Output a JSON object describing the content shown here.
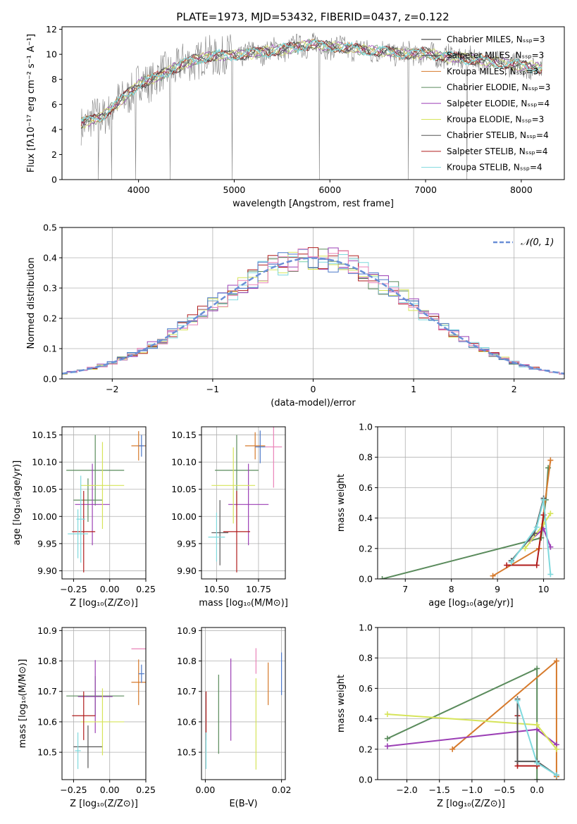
{
  "chart_data": [
    {
      "type": "line",
      "title": "PLATE=1973, MJD=53432, FIBERID=0437, z=0.122",
      "xlabel": "wavelength [Angstrom, rest frame]",
      "ylabel": "Flux [fλ10⁻¹⁷ erg cm⁻² s⁻¹ A⁻¹]",
      "xlim": [
        3200,
        8450
      ],
      "ylim": [
        0,
        12.2
      ],
      "xticks": [
        4000,
        5000,
        6000,
        7000,
        8000
      ],
      "yticks": [
        0,
        2,
        4,
        6,
        8,
        10,
        12
      ],
      "grid": false,
      "legend_position": "upper-right",
      "series": [
        {
          "name": "Chabrier MILES, Nₛₛₚ=3",
          "color": "#1f1f1f"
        },
        {
          "name": "Salpeter MILES, Nₛₛₚ=3",
          "color": "#444444"
        },
        {
          "name": "Kroupa MILES, Nₛₛₚ=3",
          "color": "#d67a2c"
        },
        {
          "name": "Chabrier ELODIE, Nₛₛₚ=3",
          "color": "#5a8b5c"
        },
        {
          "name": "Salpeter ELODIE, Nₛₛₚ=4",
          "color": "#9b3fb5"
        },
        {
          "name": "Kroupa ELODIE, Nₛₛₚ=3",
          "color": "#d6e45a"
        },
        {
          "name": "Chabrier STELIB, Nₛₛₚ=4",
          "color": "#555555"
        },
        {
          "name": "Salpeter STELIB, Nₛₛₚ=4",
          "color": "#b01c1c"
        },
        {
          "name": "Kroupa STELIB, Nₛₛₚ=4",
          "color": "#7fd9dd"
        }
      ],
      "data_color": "#808080",
      "continuum": {
        "x": [
          3400,
          3600,
          3800,
          4000,
          4200,
          4400,
          4600,
          4800,
          5000,
          5200,
          5400,
          5600,
          5800,
          6000,
          6200,
          6400,
          6600,
          6800,
          7000,
          7200,
          7400,
          7600,
          7800,
          8000,
          8200
        ],
        "y": [
          4.5,
          5.0,
          6.2,
          7.6,
          8.2,
          9.0,
          9.6,
          9.9,
          9.9,
          10.1,
          10.3,
          10.5,
          10.8,
          10.6,
          10.5,
          10.3,
          10.2,
          10.0,
          10.1,
          9.8,
          9.7,
          9.5,
          9.3,
          9.1,
          8.9
        ]
      },
      "dips": [
        3580,
        3720,
        3970,
        4330,
        4980,
        5890,
        6820,
        7430
      ]
    },
    {
      "type": "line",
      "xlabel": "(data-model)/error",
      "ylabel": "Normed distribution",
      "xlim": [
        -2.5,
        2.5
      ],
      "ylim": [
        0,
        0.5
      ],
      "xticks": [
        -2,
        -1,
        0,
        1,
        2
      ],
      "yticks": [
        0.0,
        0.1,
        0.2,
        0.3,
        0.4,
        0.5
      ],
      "grid": true,
      "legend_position": "upper-right",
      "legend": [
        "𝒩(0, 1)"
      ],
      "bin_width": 0.1,
      "step_colors": [
        "#5a8b5c",
        "#9b3fb5",
        "#d6e45a",
        "#b01c1c",
        "#7fd9dd",
        "#4c78c9",
        "#e983b8"
      ],
      "reference_curve": {
        "type": "normal",
        "mean": 0,
        "sigma": 1,
        "color": "#6a8fd6"
      }
    },
    {
      "type": "scatter",
      "xlabel": "Z [log₁₀(Z/Z⊙)]",
      "ylabel": "age  [log₁₀(age/yr)]",
      "xlim": [
        -0.33,
        0.25
      ],
      "ylim": [
        9.885,
        10.165
      ],
      "xticks": [
        -0.25,
        0.0,
        0.25
      ],
      "xtick_labels": [
        "−0.25",
        "0.00",
        "0.25"
      ],
      "yticks": [
        9.9,
        9.95,
        10.0,
        10.05,
        10.1,
        10.15
      ],
      "grid": true,
      "points": [
        {
          "x": -0.1,
          "y": 10.085,
          "xerr": 0.2,
          "yerr": 0.065,
          "color": "#5a8b5c"
        },
        {
          "x": -0.15,
          "y": 10.03,
          "xerr": 0.1,
          "yerr": 0.04,
          "color": "#5a8b5c"
        },
        {
          "x": -0.12,
          "y": 10.022,
          "xerr": 0.12,
          "yerr": 0.075,
          "color": "#9b3fb5"
        },
        {
          "x": -0.05,
          "y": 10.057,
          "xerr": 0.15,
          "yerr": 0.08,
          "color": "#d6e45a"
        },
        {
          "x": -0.18,
          "y": 9.972,
          "xerr": 0.08,
          "yerr": 0.075,
          "color": "#b01c1c"
        },
        {
          "x": -0.22,
          "y": 9.968,
          "xerr": 0.07,
          "yerr": 0.045,
          "color": "#7fd9dd"
        },
        {
          "x": -0.2,
          "y": 9.995,
          "xerr": 0.03,
          "yerr": 0.08,
          "color": "#7fd9dd"
        },
        {
          "x": 0.2,
          "y": 10.13,
          "xerr": 0.05,
          "yerr": 0.027,
          "color": "#d67a2c"
        },
        {
          "x": 0.22,
          "y": 10.13,
          "xerr": 0.02,
          "yerr": 0.02,
          "color": "#4c78c9"
        }
      ]
    },
    {
      "type": "scatter",
      "xlabel": "mass [log₁₀(M/M⊙)]",
      "ylabel": "",
      "xlim": [
        10.41,
        10.91
      ],
      "ylim": [
        9.885,
        10.165
      ],
      "xticks": [
        10.5,
        10.75
      ],
      "xtick_labels": [
        "10.50",
        "10.75"
      ],
      "yticks": [
        9.9,
        9.95,
        10.0,
        10.05,
        10.1,
        10.15
      ],
      "grid": true,
      "points": [
        {
          "x": 10.62,
          "y": 10.085,
          "xerr": 0.13,
          "yerr": 0.065,
          "color": "#5a8b5c"
        },
        {
          "x": 10.69,
          "y": 10.022,
          "xerr": 0.12,
          "yerr": 0.075,
          "color": "#9b3fb5"
        },
        {
          "x": 10.6,
          "y": 10.057,
          "xerr": 0.13,
          "yerr": 0.07,
          "color": "#d6e45a"
        },
        {
          "x": 10.62,
          "y": 9.972,
          "xerr": 0.08,
          "yerr": 0.075,
          "color": "#b01c1c"
        },
        {
          "x": 10.52,
          "y": 9.97,
          "xerr": 0.05,
          "yerr": 0.06,
          "color": "#555555"
        },
        {
          "x": 10.5,
          "y": 9.962,
          "xerr": 0.05,
          "yerr": 0.045,
          "color": "#7fd9dd"
        },
        {
          "x": 10.73,
          "y": 10.13,
          "xerr": 0.06,
          "yerr": 0.025,
          "color": "#d67a2c"
        },
        {
          "x": 10.76,
          "y": 10.128,
          "xerr": 0.03,
          "yerr": 0.03,
          "color": "#4c78c9"
        },
        {
          "x": 10.84,
          "y": 10.128,
          "xerr": 0.05,
          "yerr": 0.075,
          "color": "#e983b8"
        }
      ]
    },
    {
      "type": "line",
      "xlabel": "age  [log₁₀(age/yr)]",
      "ylabel": "mass weight",
      "xlim": [
        6.4,
        10.45
      ],
      "ylim": [
        0,
        1.0
      ],
      "xticks": [
        7,
        8,
        9,
        10
      ],
      "yticks": [
        0.0,
        0.2,
        0.4,
        0.6,
        0.8,
        1.0
      ],
      "grid": true,
      "series": [
        {
          "color": "#5a8b5c",
          "x": [
            6.5,
            9.95,
            10.05,
            10.1
          ],
          "y": [
            0.0,
            0.27,
            0.52,
            0.73
          ]
        },
        {
          "color": "#d67a2c",
          "x": [
            8.9,
            9.9,
            10.15
          ],
          "y": [
            0.02,
            0.2,
            0.78
          ]
        },
        {
          "color": "#9b3fb5",
          "x": [
            9.7,
            10.0,
            10.15
          ],
          "y": [
            0.25,
            0.33,
            0.21
          ]
        },
        {
          "color": "#d6e45a",
          "x": [
            9.6,
            10.0,
            10.15
          ],
          "y": [
            0.2,
            0.36,
            0.43
          ]
        },
        {
          "color": "#b01c1c",
          "x": [
            9.2,
            9.85,
            10.0
          ],
          "y": [
            0.09,
            0.09,
            0.42
          ]
        },
        {
          "color": "#555555",
          "x": [
            9.3,
            9.8,
            10.0
          ],
          "y": [
            0.12,
            0.3,
            0.53
          ]
        },
        {
          "color": "#7fd9dd",
          "x": [
            9.3,
            9.85,
            10.0,
            10.15
          ],
          "y": [
            0.11,
            0.34,
            0.52,
            0.03
          ]
        }
      ]
    },
    {
      "type": "scatter",
      "xlabel": "Z [log₁₀(Z/Z⊙)]",
      "ylabel": "mass [log₁₀(M/M⊙)]",
      "xlim": [
        -0.33,
        0.25
      ],
      "ylim": [
        10.41,
        10.91
      ],
      "xticks": [
        -0.25,
        0.0,
        0.25
      ],
      "xtick_labels": [
        "−0.25",
        "0.00",
        "0.25"
      ],
      "yticks": [
        10.5,
        10.6,
        10.7,
        10.8,
        10.9
      ],
      "grid": true,
      "points": [
        {
          "x": -0.1,
          "y": 10.685,
          "xerr": 0.2,
          "yerr": 0.065,
          "color": "#5a8b5c"
        },
        {
          "x": -0.15,
          "y": 10.518,
          "xerr": 0.1,
          "yerr": 0.07,
          "color": "#555555"
        },
        {
          "x": -0.1,
          "y": 10.683,
          "xerr": 0.12,
          "yerr": 0.12,
          "color": "#9b3fb5"
        },
        {
          "x": -0.05,
          "y": 10.6,
          "xerr": 0.15,
          "yerr": 0.11,
          "color": "#d6e45a"
        },
        {
          "x": -0.18,
          "y": 10.62,
          "xerr": 0.08,
          "yerr": 0.08,
          "color": "#b01c1c"
        },
        {
          "x": -0.22,
          "y": 10.505,
          "xerr": 0.02,
          "yerr": 0.06,
          "color": "#7fd9dd"
        },
        {
          "x": 0.2,
          "y": 10.73,
          "xerr": 0.05,
          "yerr": 0.075,
          "color": "#d67a2c"
        },
        {
          "x": 0.22,
          "y": 10.758,
          "xerr": 0.02,
          "yerr": 0.03,
          "color": "#4c78c9"
        },
        {
          "x": 0.2,
          "y": 10.84,
          "xerr": 0.05,
          "yerr": 0.0,
          "color": "#e983b8"
        }
      ]
    },
    {
      "type": "scatter",
      "xlabel": "E(B-V)",
      "ylabel": "",
      "xlim": [
        -0.001,
        0.021
      ],
      "ylim": [
        10.41,
        10.91
      ],
      "xticks": [
        0.0,
        0.02
      ],
      "xtick_labels": [
        "0.00",
        "0.02"
      ],
      "yticks": [
        10.5,
        10.6,
        10.7,
        10.8,
        10.9
      ],
      "grid": true,
      "points": [
        {
          "x": 0.0002,
          "y": 10.62,
          "xerr": 0,
          "yerr": 0.08,
          "color": "#b01c1c"
        },
        {
          "x": 0.0002,
          "y": 10.505,
          "xerr": 0,
          "yerr": 0.06,
          "color": "#7fd9dd"
        },
        {
          "x": 0.0035,
          "y": 10.625,
          "xerr": 0,
          "yerr": 0.13,
          "color": "#5a8b5c"
        },
        {
          "x": 0.0067,
          "y": 10.673,
          "xerr": 0,
          "yerr": 0.135,
          "color": "#9b3fb5"
        },
        {
          "x": 0.0133,
          "y": 10.593,
          "xerr": 0,
          "yerr": 0.15,
          "color": "#d6e45a"
        },
        {
          "x": 0.0133,
          "y": 10.8,
          "xerr": 0,
          "yerr": 0.042,
          "color": "#e983b8"
        },
        {
          "x": 0.0165,
          "y": 10.725,
          "xerr": 0,
          "yerr": 0.07,
          "color": "#d67a2c"
        },
        {
          "x": 0.02,
          "y": 10.758,
          "xerr": 0,
          "yerr": 0.07,
          "color": "#4c78c9"
        }
      ]
    },
    {
      "type": "line",
      "xlabel": "Z [log₁₀(Z/Z⊙)]",
      "ylabel": "mass weight",
      "xlim": [
        -2.45,
        0.42
      ],
      "ylim": [
        0,
        1.0
      ],
      "xticks": [
        -2.0,
        -1.5,
        -1.0,
        -0.5,
        0.0
      ],
      "xtick_labels": [
        "−2.0",
        "−1.5",
        "−1.0",
        "−0.5",
        "0.0"
      ],
      "yticks": [
        0.0,
        0.2,
        0.4,
        0.6,
        0.8,
        1.0
      ],
      "grid": true,
      "series": [
        {
          "color": "#5a8b5c",
          "x": [
            -2.3,
            0.0,
            0.0
          ],
          "y": [
            0.27,
            0.73,
            0.0
          ]
        },
        {
          "color": "#d67a2c",
          "x": [
            -1.3,
            0.3,
            0.3
          ],
          "y": [
            0.2,
            0.78,
            0.02
          ]
        },
        {
          "color": "#9b3fb5",
          "x": [
            -2.3,
            0.0,
            0.3
          ],
          "y": [
            0.22,
            0.33,
            0.23
          ]
        },
        {
          "color": "#d6e45a",
          "x": [
            -2.3,
            0.0,
            0.3
          ],
          "y": [
            0.43,
            0.36,
            0.2
          ]
        },
        {
          "color": "#b01c1c",
          "x": [
            -0.3,
            -0.3,
            0.0,
            0.0
          ],
          "y": [
            0.42,
            0.09,
            0.09,
            0.09
          ]
        },
        {
          "color": "#555555",
          "x": [
            -0.3,
            -0.3,
            0.0,
            0.3
          ],
          "y": [
            0.53,
            0.12,
            0.12,
            0.03
          ]
        },
        {
          "color": "#7fd9dd",
          "x": [
            -0.3,
            0.0,
            0.3
          ],
          "y": [
            0.52,
            0.11,
            0.03
          ]
        }
      ]
    }
  ]
}
